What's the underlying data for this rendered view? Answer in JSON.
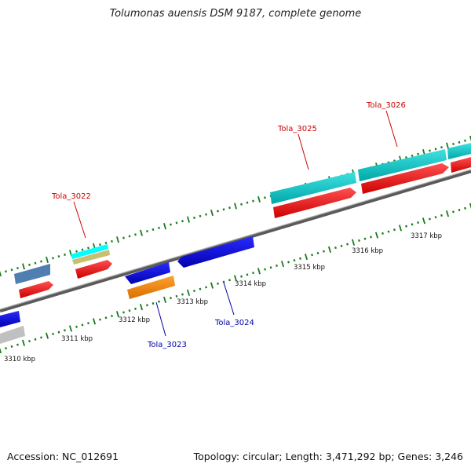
{
  "header": {
    "title": "Tolumonas auensis DSM 9187, complete genome"
  },
  "footer": {
    "accession": "Accession: NC_012691",
    "summary": "Topology: circular; Length: 3,471,292 bp; Genes: 3,246"
  },
  "scale_labels": [
    "3310 kbp",
    "3311 kbp",
    "3312 kbp",
    "3313 kbp",
    "3314 kbp",
    "3315 kbp",
    "3316 kbp",
    "3317 kbp"
  ],
  "gene_labels": [
    {
      "text": "Tola_3022",
      "color": "#cc0000"
    },
    {
      "text": "Tola_3023",
      "color": "#0000aa"
    },
    {
      "text": "Tola_3024",
      "color": "#0000aa"
    },
    {
      "text": "Tola_3025",
      "color": "#cc0000"
    },
    {
      "text": "Tola_3026",
      "color": "#cc0000"
    }
  ],
  "colors": {
    "backbone": "#8a8a8a",
    "tick": "#1a7a1a",
    "cds": "#ff0000",
    "gene_forward": "#00c8c8",
    "gene_blue": "#0000ee",
    "orange": "#ff8c00",
    "steelblue": "#4f7fb0",
    "khaki": "#c8c070",
    "cyan": "#00ffff",
    "grey": "#c0c0c0"
  }
}
